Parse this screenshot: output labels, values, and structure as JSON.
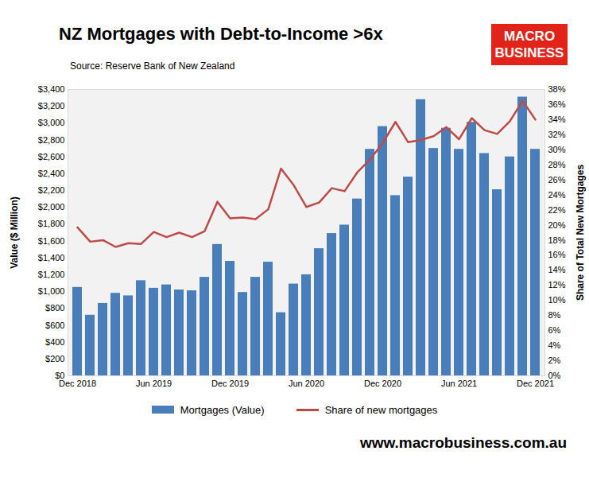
{
  "chart_data": {
    "type": "bar",
    "title": "NZ Mortgages with Debt-to-Income >6x",
    "subtitle": "Source: Reserve Bank of New Zealand",
    "logo": [
      "MACRO",
      "BUSINESS"
    ],
    "caption": "www.macrobusiness.com.au",
    "y_label": "Value ($ Million)",
    "y2_label": "Share of Total New Mortgages",
    "categories": [
      "Dec 2018",
      null,
      null,
      null,
      null,
      null,
      "Jun 2019",
      null,
      null,
      null,
      null,
      null,
      "Dec 2019",
      null,
      null,
      null,
      null,
      null,
      "Jun 2020",
      null,
      null,
      null,
      null,
      null,
      "Dec 2020",
      null,
      null,
      null,
      null,
      null,
      "Jun 2021",
      null,
      null,
      null,
      null,
      null,
      "Dec 2021"
    ],
    "series": [
      {
        "name": "Mortgages (Value)",
        "type": "bar",
        "color": "#4a7ebb",
        "values": [
          1050,
          720,
          860,
          980,
          950,
          1130,
          1040,
          1080,
          1020,
          1010,
          1170,
          1560,
          1360,
          990,
          1170,
          1350,
          750,
          1090,
          1200,
          1510,
          1690,
          1790,
          2100,
          2690,
          2960,
          2140,
          2360,
          3280,
          2700,
          2940,
          2690,
          3010,
          2640,
          2210,
          2600,
          3310,
          2690
        ]
      },
      {
        "name": "Share of new mortgages",
        "type": "line",
        "color": "#be4b48",
        "axis": "y2",
        "values": [
          19.7,
          17.8,
          18.0,
          17.1,
          17.6,
          17.5,
          19.1,
          18.4,
          19.0,
          18.4,
          19.2,
          23.1,
          20.9,
          21.0,
          20.8,
          22.1,
          27.5,
          25.3,
          22.4,
          23.0,
          24.9,
          24.5,
          27.0,
          28.7,
          30.9,
          33.7,
          31.0,
          31.3,
          31.8,
          33.0,
          31.4,
          34.2,
          32.6,
          32.1,
          33.8,
          36.5,
          34.0
        ]
      }
    ],
    "ylim": [
      0,
      3400
    ],
    "yticks": [
      {
        "value": 0,
        "label": "$0"
      },
      {
        "value": 200,
        "label": "$200"
      },
      {
        "value": 400,
        "label": "$400"
      },
      {
        "value": 600,
        "label": "$600"
      },
      {
        "value": 800,
        "label": "$800"
      },
      {
        "value": 1000,
        "label": "$1,000"
      },
      {
        "value": 1200,
        "label": "$1,200"
      },
      {
        "value": 1400,
        "label": "$1,400"
      },
      {
        "value": 1600,
        "label": "$1,600"
      },
      {
        "value": 1800,
        "label": "$1,800"
      },
      {
        "value": 2000,
        "label": "$2,000"
      },
      {
        "value": 2200,
        "label": "$2,200"
      },
      {
        "value": 2400,
        "label": "$2,400"
      },
      {
        "value": 2600,
        "label": "$2,600"
      },
      {
        "value": 2800,
        "label": "$2,800"
      },
      {
        "value": 3000,
        "label": "$3,000"
      },
      {
        "value": 3200,
        "label": "$3,200"
      },
      {
        "value": 3400,
        "label": "$3,400"
      }
    ],
    "y2lim": [
      0,
      38
    ],
    "y2ticks": [
      {
        "value": 0,
        "label": "0%"
      },
      {
        "value": 2,
        "label": "2%"
      },
      {
        "value": 4,
        "label": "4%"
      },
      {
        "value": 6,
        "label": "6%"
      },
      {
        "value": 8,
        "label": "8%"
      },
      {
        "value": 10,
        "label": "10%"
      },
      {
        "value": 12,
        "label": "12%"
      },
      {
        "value": 14,
        "label": "14%"
      },
      {
        "value": 16,
        "label": "16%"
      },
      {
        "value": 18,
        "label": "18%"
      },
      {
        "value": 20,
        "label": "20%"
      },
      {
        "value": 22,
        "label": "22%"
      },
      {
        "value": 24,
        "label": "24%"
      },
      {
        "value": 26,
        "label": "26%"
      },
      {
        "value": 28,
        "label": "28%"
      },
      {
        "value": 30,
        "label": "30%"
      },
      {
        "value": 32,
        "label": "32%"
      },
      {
        "value": 34,
        "label": "34%"
      },
      {
        "value": 36,
        "label": "36%"
      },
      {
        "value": 38,
        "label": "38%"
      }
    ],
    "grid": false,
    "legend": "bottom"
  }
}
